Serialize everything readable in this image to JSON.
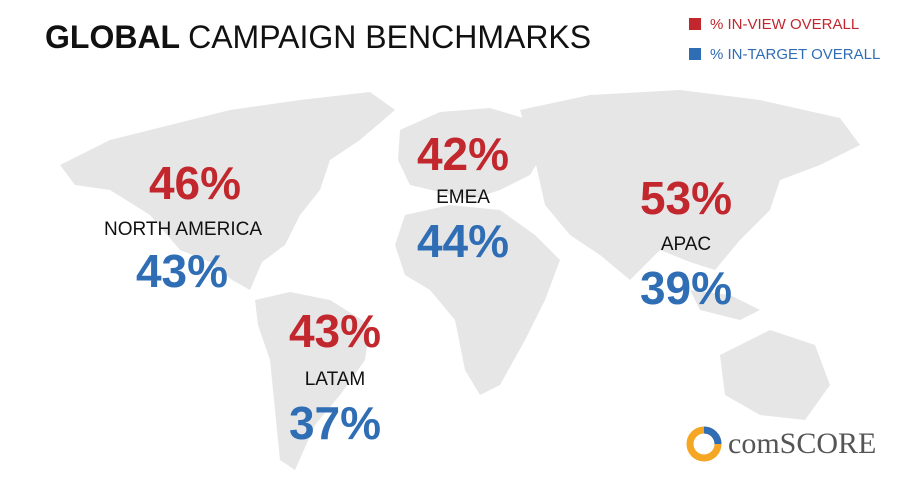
{
  "title": {
    "bold": "GLOBAL",
    "rest": "CAMPAIGN BENCHMARKS"
  },
  "legend": [
    {
      "label": "% IN-VIEW OVERALL",
      "color": "#c1272d"
    },
    {
      "label": "% IN-TARGET OVERALL",
      "color": "#2f6db5"
    }
  ],
  "regions": [
    {
      "name": "NORTH AMERICA",
      "in_view": "46%",
      "in_target": "43%"
    },
    {
      "name": "EMEA",
      "in_view": "42%",
      "in_target": "44%"
    },
    {
      "name": "APAC",
      "in_view": "53%",
      "in_target": "39%"
    },
    {
      "name": "LATAM",
      "in_view": "43%",
      "in_target": "37%"
    }
  ],
  "logo": "comSCORE"
}
